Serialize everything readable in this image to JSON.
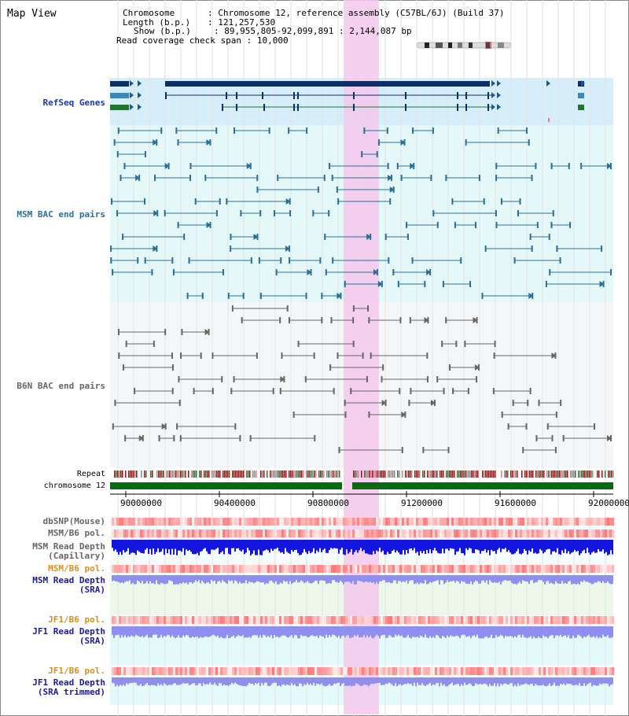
{
  "header": {
    "title": "Map View",
    "chromosome_key": "Chromosome",
    "chromosome_value": "Chromosome 12, reference assembly (C57BL/6J) (Build 37)",
    "length_key": "Length (b.p.)",
    "length_value": "121,257,530",
    "show_key": "Show (b.p.)",
    "show_value": "89,955,805-92,099,891 : 2,144,087 bp",
    "coverage_key": "Read coverage check span",
    "coverage_value": "10,000"
  },
  "tracks": {
    "refseq": "RefSeq Genes",
    "msm_bac": "MSM BAC end pairs",
    "b6n_bac": "B6N BAC end pairs",
    "repeat": "Repeat",
    "chromosome": "chromosome 12",
    "dbsnp": "dbSNP(Mouse)",
    "msm_b6_pol_1": "MSM/B6 pol.",
    "msm_depth_cap_1": "MSM Read Depth",
    "msm_depth_cap_2": "(Capillary)",
    "msm_b6_pol_2": "MSM/B6 pol.",
    "msm_depth_sra_1": "MSM Read Depth",
    "msm_depth_sra_2": "(SRA)",
    "jf1_b6_pol_1": "JF1/B6 pol.",
    "jf1_depth_sra_1": "JF1 Read Depth",
    "jf1_depth_sra_2": "(SRA)",
    "jf1_b6_pol_2": "JF1/B6 pol.",
    "jf1_depth_trim_1": "JF1 Read Depth",
    "jf1_depth_trim_2": "(SRA trimmed)"
  },
  "axis": {
    "ticks": [
      "90000000",
      "90400000",
      "90800000",
      "91200000",
      "91600000",
      "92000000"
    ]
  },
  "colors": {
    "highlight": "#f5c8ec",
    "refseq_bg": "#d6eefa",
    "msm_bg": "#e4f8f8",
    "b6n_bg": "#f4f6f8",
    "depth_bg": "#e9f9f9",
    "chromosome_bar": "#0a6a14",
    "msm_depth": "#1515e0",
    "sra_depth": "#8f8ff0"
  }
}
